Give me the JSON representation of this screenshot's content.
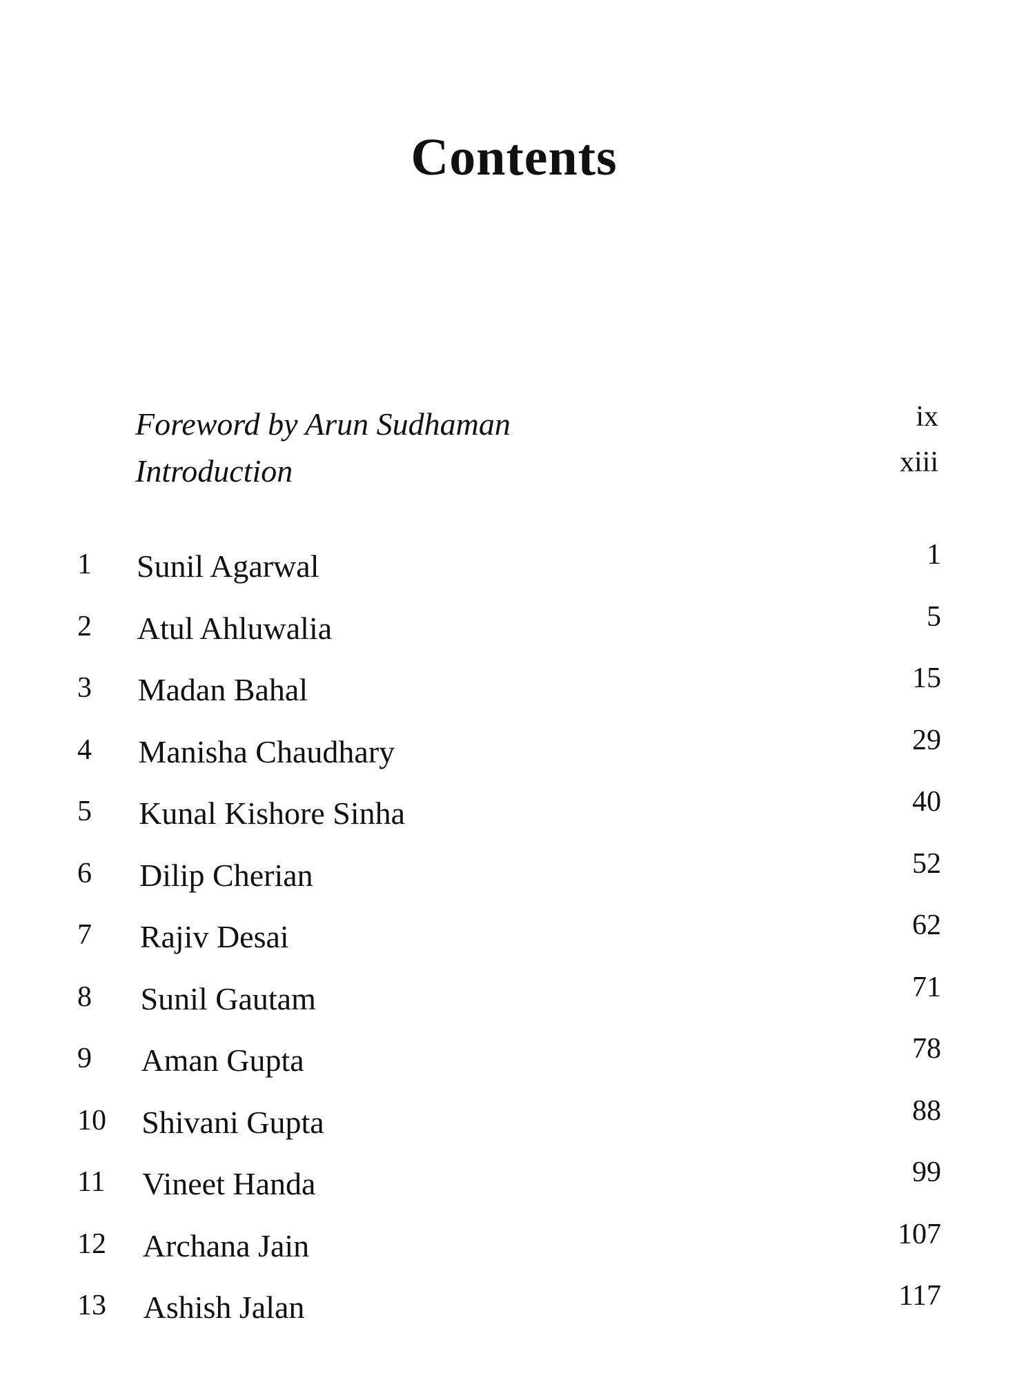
{
  "title": "Contents",
  "front_matter": [
    {
      "label": "Foreword by Arun Sudhaman",
      "page": "ix"
    },
    {
      "label": "Introduction",
      "page": "xiii"
    }
  ],
  "chapters": [
    {
      "number": "1",
      "name": "Sunil Agarwal",
      "page": "1"
    },
    {
      "number": "2",
      "name": "Atul Ahluwalia",
      "page": "5"
    },
    {
      "number": "3",
      "name": "Madan Bahal",
      "page": "15"
    },
    {
      "number": "4",
      "name": "Manisha Chaudhary",
      "page": "29"
    },
    {
      "number": "5",
      "name": "Kunal Kishore Sinha",
      "page": "40"
    },
    {
      "number": "6",
      "name": "Dilip Cherian",
      "page": "52"
    },
    {
      "number": "7",
      "name": "Rajiv Desai",
      "page": "62"
    },
    {
      "number": "8",
      "name": "Sunil Gautam",
      "page": "71"
    },
    {
      "number": "9",
      "name": "Aman Gupta",
      "page": "78"
    },
    {
      "number": "10",
      "name": "Shivani Gupta",
      "page": "88"
    },
    {
      "number": "11",
      "name": "Vineet Handa",
      "page": "99"
    },
    {
      "number": "12",
      "name": "Archana Jain",
      "page": "107"
    },
    {
      "number": "13",
      "name": "Ashish Jalan",
      "page": "117"
    }
  ]
}
